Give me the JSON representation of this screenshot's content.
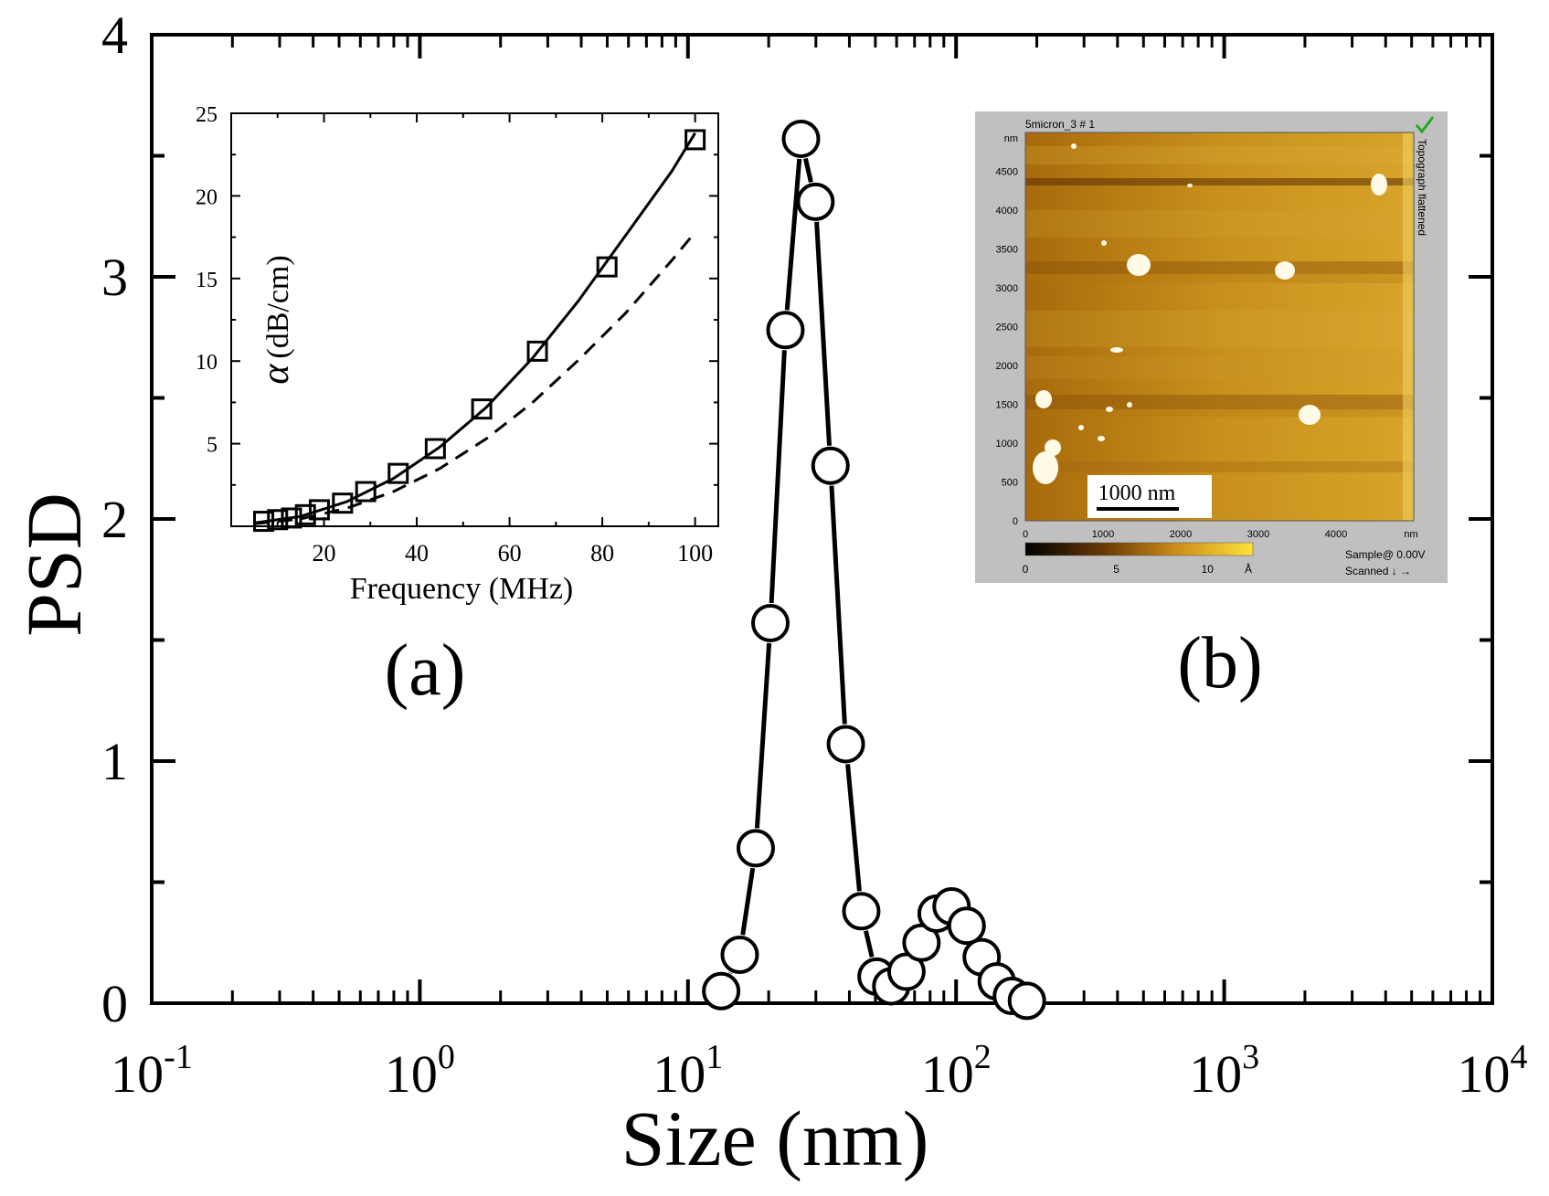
{
  "chart_data": [
    {
      "type": "scatter",
      "xscale": "log",
      "xlim": [
        0.1,
        10000
      ],
      "ylim": [
        0,
        4
      ],
      "xlabel": "Size (nm)",
      "ylabel": "PSD",
      "x_tick_labels": [
        {
          "base": "10",
          "exp": "-1",
          "value": 0.1
        },
        {
          "base": "10",
          "exp": "0",
          "value": 1
        },
        {
          "base": "10",
          "exp": "1",
          "value": 10
        },
        {
          "base": "10",
          "exp": "2",
          "value": 100
        },
        {
          "base": "10",
          "exp": "3",
          "value": 1000
        },
        {
          "base": "10",
          "exp": "4",
          "value": 10000
        }
      ],
      "y_ticks": [
        "0",
        "1",
        "2",
        "3",
        "4"
      ],
      "grid": false,
      "marker": "open-circle",
      "connected": true,
      "series": [
        {
          "x": [
            13.3,
            15.6,
            17.9,
            20.3,
            23.1,
            26.4,
            29.9,
            34.0,
            38.8,
            44.3,
            50.5,
            57.3,
            65.3,
            74.3,
            84.6,
            96.2,
            109.5,
            124.6,
            141.8,
            161.4,
            183.7
          ],
          "values": [
            0.05,
            0.2,
            0.64,
            1.57,
            2.78,
            3.57,
            3.31,
            2.22,
            1.07,
            0.38,
            0.11,
            0.07,
            0.13,
            0.25,
            0.37,
            0.4,
            0.32,
            0.19,
            0.09,
            0.03,
            0.01
          ]
        }
      ],
      "panel_label": "(a)"
    },
    {
      "type": "line",
      "inset": true,
      "xlabel": "Frequency (MHz)",
      "ylabel_symbol": "α",
      "ylabel": "(dB/cm)",
      "xlim": [
        0,
        105
      ],
      "ylim": [
        0,
        25
      ],
      "x_ticks": [
        "20",
        "40",
        "60",
        "80",
        "100"
      ],
      "y_ticks": [
        "5",
        "10",
        "15",
        "20",
        "25"
      ],
      "series": [
        {
          "marker": "open-square",
          "x": [
            7,
            10,
            13,
            16,
            19,
            24,
            29,
            36,
            44,
            54,
            66,
            81,
            100
          ],
          "values": [
            0.3,
            0.4,
            0.5,
            0.7,
            1.0,
            1.4,
            2.1,
            3.2,
            4.7,
            7.1,
            10.6,
            15.7,
            23.4
          ]
        },
        {
          "style": "solid",
          "x": [
            5,
            15,
            25,
            35,
            45,
            55,
            65,
            75,
            85,
            95,
            100
          ],
          "values": [
            0.2,
            0.6,
            1.5,
            2.9,
            4.8,
            7.2,
            10.2,
            13.7,
            17.6,
            21.5,
            23.8
          ]
        },
        {
          "style": "dashed",
          "x": [
            5,
            15,
            25,
            35,
            45,
            55,
            65,
            75,
            85,
            95,
            100
          ],
          "values": [
            0.15,
            0.45,
            1.1,
            2.1,
            3.5,
            5.3,
            7.5,
            10.1,
            12.9,
            16.1,
            17.8
          ]
        }
      ]
    }
  ],
  "afm_image": {
    "panel_label": "(b)",
    "title": "5micron_3 # 1",
    "status_icon": "check-icon",
    "y_unit": "nm",
    "y_ticks": [
      "4500",
      "4000",
      "3500",
      "3000",
      "2500",
      "2000",
      "1500",
      "1000",
      "500",
      "0"
    ],
    "x_ticks": [
      "0",
      "1000",
      "2000",
      "3000",
      "4000"
    ],
    "x_unit": "nm",
    "side_label": "Topograph flattened",
    "scale_bar_label": "1000 nm",
    "colorbar_ticks": [
      "0",
      "5",
      "10"
    ],
    "colorbar_unit": "Å",
    "sample_label": "Sample@ 0.00V",
    "scanned_label": "Scanned ↓ →",
    "colors": {
      "background": "#c0c0c0",
      "dark": "#1a0a00",
      "mid": "#b87a10",
      "bright": "#f4d060",
      "particle": "#fffbe6",
      "check": "#22aa22"
    }
  }
}
